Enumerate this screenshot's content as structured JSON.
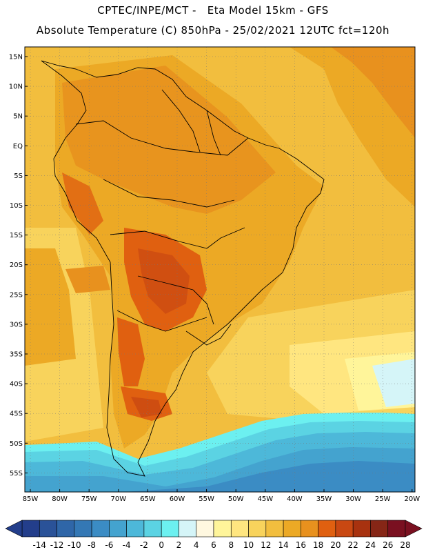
{
  "header": {
    "line1": "CPTEC/INPE/MCT -   Eta Model 15km - GFS",
    "line2": "Absolute Temperature (C) 850hPa - 25/02/2021 12UTC fct=120h"
  },
  "axes": {
    "lat_labels": [
      "15N",
      "10N",
      "5N",
      "EQ",
      "5S",
      "10S",
      "15S",
      "20S",
      "25S",
      "30S",
      "35S",
      "40S",
      "45S",
      "50S",
      "55S"
    ],
    "lon_labels": [
      "85W",
      "80W",
      "75W",
      "70W",
      "65W",
      "60W",
      "55W",
      "50W",
      "45W",
      "40W",
      "35W",
      "30W",
      "25W",
      "20W"
    ]
  },
  "colorbar": {
    "labels": [
      "-14",
      "-12",
      "-10",
      "-8",
      "-6",
      "-4",
      "-2",
      "0",
      "2",
      "4",
      "6",
      "8",
      "10",
      "12",
      "14",
      "16",
      "18",
      "20",
      "22",
      "24",
      "26",
      "28"
    ],
    "colors": [
      "#233e8b",
      "#2a5298",
      "#2f66a8",
      "#3478b5",
      "#3b8cc4",
      "#44a3cf",
      "#4db8d9",
      "#5bd3e3",
      "#6cf0f0",
      "#d5f5f8",
      "#fff8e0",
      "#fff59a",
      "#ffe680",
      "#f8d35c",
      "#f2be3e",
      "#eca925",
      "#e8911e",
      "#e06010",
      "#c94812",
      "#a8320f",
      "#862616",
      "#7a1020"
    ]
  }
}
